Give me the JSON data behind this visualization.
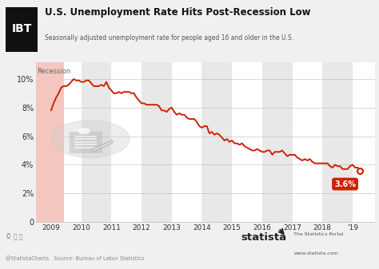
{
  "title": "U.S. Unemployment Rate Hits Post-Recession Low",
  "subtitle": "Seasonally adjusted unemployment rate for people aged 16 and older in the U.S.",
  "source": "Source: Bureau of Labor Statistics",
  "bg_color": "#f0f0f0",
  "plot_bg_color": "#ffffff",
  "line_color": "#cc2200",
  "recession_color": "#f5c6c0",
  "stripe_color": "#e8e8e8",
  "annotation_label": "3.6%",
  "annotation_box_color": "#cc2200",
  "recession_label": "Recession",
  "ylabel_ticks": [
    "0",
    "2%",
    "4%",
    "6%",
    "8%",
    "10%"
  ],
  "ytick_vals": [
    0,
    2,
    4,
    6,
    8,
    10
  ],
  "xlim": [
    2008.5,
    2019.75
  ],
  "ylim": [
    0,
    11.2
  ],
  "unemployment_data": {
    "2009-01": 7.8,
    "2009-02": 8.3,
    "2009-03": 8.7,
    "2009-04": 9.0,
    "2009-05": 9.4,
    "2009-06": 9.5,
    "2009-07": 9.5,
    "2009-08": 9.6,
    "2009-09": 9.8,
    "2009-10": 10.0,
    "2009-11": 9.9,
    "2009-12": 9.9,
    "2010-01": 9.8,
    "2010-02": 9.8,
    "2010-03": 9.9,
    "2010-04": 9.9,
    "2010-05": 9.7,
    "2010-06": 9.5,
    "2010-07": 9.5,
    "2010-08": 9.5,
    "2010-09": 9.6,
    "2010-10": 9.5,
    "2010-11": 9.8,
    "2010-12": 9.4,
    "2011-01": 9.2,
    "2011-02": 9.0,
    "2011-03": 9.0,
    "2011-04": 9.1,
    "2011-05": 9.0,
    "2011-06": 9.1,
    "2011-07": 9.1,
    "2011-08": 9.1,
    "2011-09": 9.0,
    "2011-10": 9.0,
    "2011-11": 8.7,
    "2011-12": 8.5,
    "2012-01": 8.3,
    "2012-02": 8.3,
    "2012-03": 8.2,
    "2012-04": 8.2,
    "2012-05": 8.2,
    "2012-06": 8.2,
    "2012-07": 8.2,
    "2012-08": 8.1,
    "2012-09": 7.8,
    "2012-10": 7.8,
    "2012-11": 7.7,
    "2012-12": 7.9,
    "2013-01": 8.0,
    "2013-02": 7.7,
    "2013-03": 7.5,
    "2013-04": 7.6,
    "2013-05": 7.5,
    "2013-06": 7.5,
    "2013-07": 7.3,
    "2013-08": 7.2,
    "2013-09": 7.2,
    "2013-10": 7.2,
    "2013-11": 7.0,
    "2013-12": 6.7,
    "2014-01": 6.6,
    "2014-02": 6.7,
    "2014-03": 6.7,
    "2014-04": 6.2,
    "2014-05": 6.3,
    "2014-06": 6.1,
    "2014-07": 6.2,
    "2014-08": 6.1,
    "2014-09": 5.9,
    "2014-10": 5.7,
    "2014-11": 5.8,
    "2014-12": 5.6,
    "2015-01": 5.7,
    "2015-02": 5.5,
    "2015-03": 5.5,
    "2015-04": 5.4,
    "2015-05": 5.5,
    "2015-06": 5.3,
    "2015-07": 5.2,
    "2015-08": 5.1,
    "2015-09": 5.0,
    "2015-10": 5.0,
    "2015-11": 5.1,
    "2015-12": 5.0,
    "2016-01": 4.9,
    "2016-02": 4.9,
    "2016-03": 5.0,
    "2016-04": 5.0,
    "2016-05": 4.7,
    "2016-06": 4.9,
    "2016-07": 4.9,
    "2016-08": 4.9,
    "2016-09": 5.0,
    "2016-10": 4.8,
    "2016-11": 4.6,
    "2016-12": 4.7,
    "2017-01": 4.7,
    "2017-02": 4.7,
    "2017-03": 4.5,
    "2017-04": 4.4,
    "2017-05": 4.3,
    "2017-06": 4.4,
    "2017-07": 4.3,
    "2017-08": 4.4,
    "2017-09": 4.2,
    "2017-10": 4.1,
    "2017-11": 4.1,
    "2017-12": 4.1,
    "2018-01": 4.1,
    "2018-02": 4.1,
    "2018-03": 4.1,
    "2018-04": 3.9,
    "2018-05": 3.8,
    "2018-06": 4.0,
    "2018-07": 3.9,
    "2018-08": 3.9,
    "2018-09": 3.7,
    "2018-10": 3.7,
    "2018-11": 3.7,
    "2018-12": 3.9,
    "2019-01": 4.0,
    "2019-02": 3.8,
    "2019-03": 3.8,
    "2019-04": 3.6
  },
  "recession_start": 2008.5,
  "recession_end": 2009.42,
  "ibt_box_color": "#111111",
  "ibt_text": "IBT",
  "xtick_positions": [
    2009,
    2010,
    2011,
    2012,
    2013,
    2014,
    2015,
    2016,
    2017,
    2018,
    2019
  ],
  "xtick_labels": [
    "2009",
    "2010",
    "2011",
    "2012",
    "2013",
    "2014",
    "2015",
    "2016",
    "2017",
    "2018",
    "'19"
  ]
}
